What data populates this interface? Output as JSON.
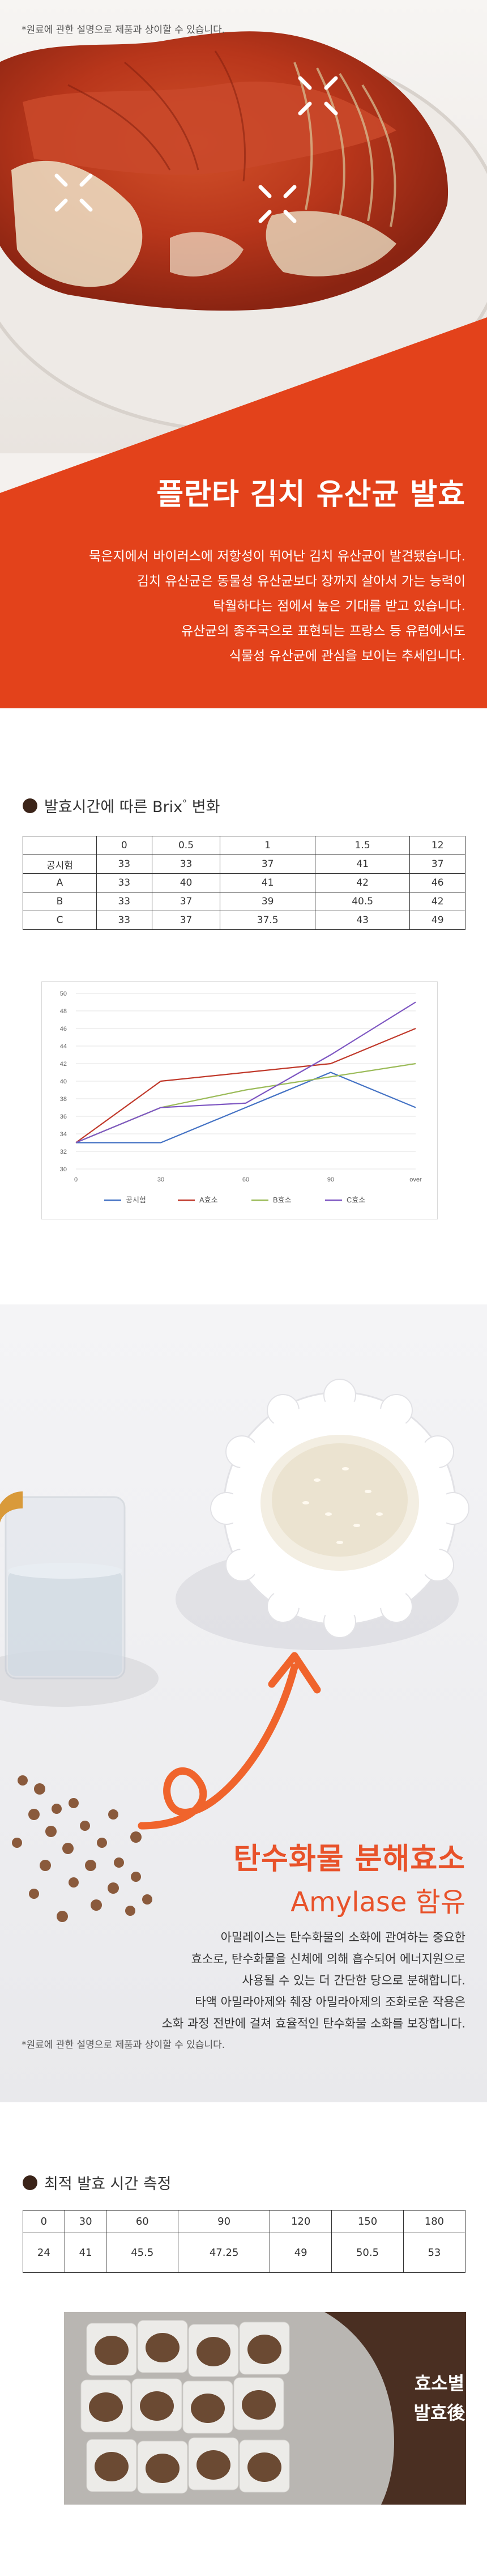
{
  "hero": {
    "note": "*원료에 관한 설명으로 제품과 상이할 수 있습니다.",
    "title": "플란타 김치 유산균 발효",
    "body": [
      "묵은지에서 바이러스에 저항성이 뛰어난 김치 유산균이 발견됐습니다.",
      "김치 유산균은 동물성 유산균보다 장까지 살아서 가는 능력이",
      "탁월하다는 점에서 높은 기대를 받고 있습니다.",
      "유산균의 종주국으로 표현되는 프랑스 등 유럽에서도",
      "식물성 유산균에 관심을 보이는 추세입니다."
    ],
    "colors": {
      "accent": "#e3421b"
    }
  },
  "brix": {
    "heading": "발효시간에 따른 Brix",
    "heading_sup": "°",
    "heading_tail": " 변화",
    "table": {
      "header": [
        "",
        "0",
        "0.5",
        "1",
        "1.5",
        "12"
      ],
      "rows": [
        [
          "공시험",
          "33",
          "33",
          "37",
          "41",
          "37"
        ],
        [
          "A",
          "33",
          "40",
          "41",
          "42",
          "46"
        ],
        [
          "B",
          "33",
          "37",
          "39",
          "40.5",
          "42"
        ],
        [
          "C",
          "33",
          "37",
          "37.5",
          "43",
          "49"
        ]
      ]
    }
  },
  "chart_data": {
    "type": "line",
    "x": [
      "0",
      "30",
      "60",
      "90",
      "over"
    ],
    "ylim": [
      30,
      50
    ],
    "yticks": [
      30,
      32,
      34,
      36,
      38,
      40,
      42,
      44,
      46,
      48,
      50
    ],
    "grid": true,
    "legend": "bottom",
    "series": [
      {
        "name": "공시험",
        "color": "#4472c4",
        "values": [
          33,
          33,
          37,
          41,
          37
        ]
      },
      {
        "name": "A효소",
        "color": "#c0392b",
        "values": [
          33,
          40,
          41,
          42,
          46
        ]
      },
      {
        "name": "B효소",
        "color": "#9bbb59",
        "values": [
          33,
          37,
          39,
          40.5,
          42
        ]
      },
      {
        "name": "C효소",
        "color": "#7e57c2",
        "values": [
          33,
          37,
          37.5,
          43,
          49
        ]
      }
    ]
  },
  "amylase": {
    "title": "탄수화물 분해효소",
    "sub_en": "Amylase",
    "sub_ko": " 함유",
    "body": [
      "아밀레이스는 탄수화물의 소화에 관여하는 중요한",
      "효소로, 탄수화물을 신체에 의해 흡수되어 에너지원으로",
      "사용될 수 있는 더 간단한 당으로 분해합니다.",
      "타액 아밀라아제와 췌장 아밀라아제의 조화로운 작용은",
      "소화 과정 전반에 걸쳐 효율적인 탄수화물 소화를 보장합니다."
    ],
    "note": "*원료에 관한 설명으로 제품과 상이할 수 있습니다.",
    "colors": {
      "accent": "#e8522a"
    }
  },
  "optimal": {
    "heading": "최적 발효 시간 측정",
    "header": [
      "0",
      "30",
      "60",
      "90",
      "120",
      "150",
      "180"
    ],
    "values": [
      "24",
      "41",
      "45.5",
      "47.25",
      "49",
      "50.5",
      "53"
    ],
    "label_line1": "효소별",
    "label_line2": "발효後",
    "colors": {
      "badge": "#4a2f22"
    }
  }
}
